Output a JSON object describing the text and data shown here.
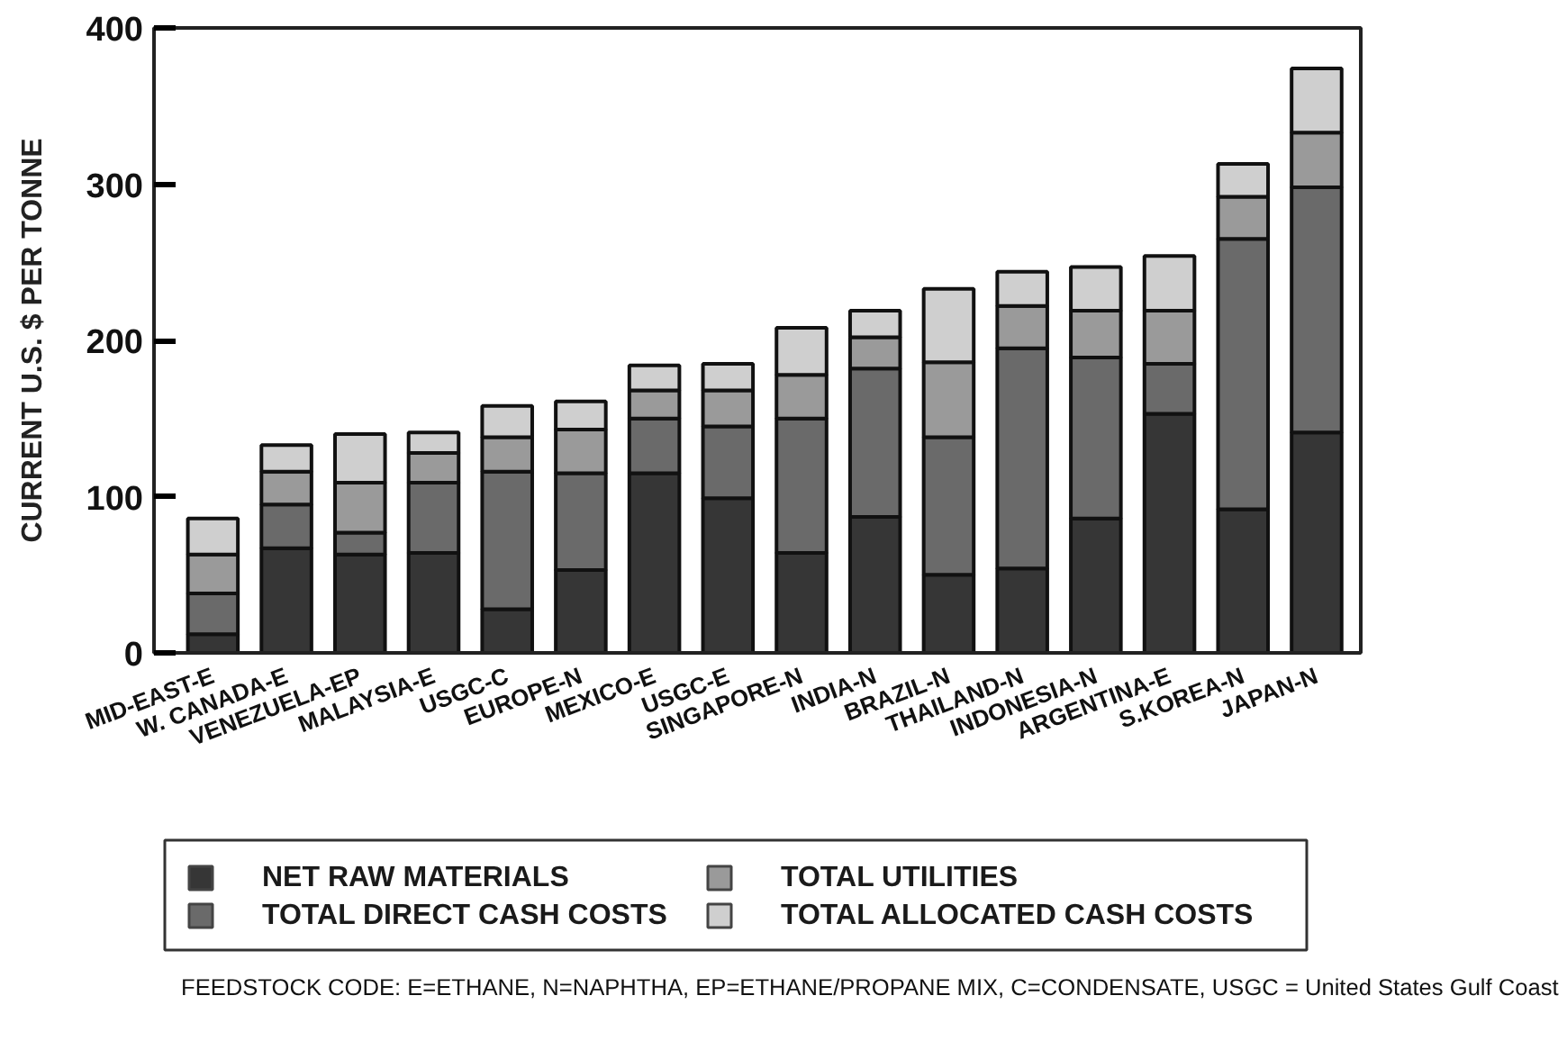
{
  "chart_data": {
    "type": "bar",
    "stacked": true,
    "ylabel": "CURRENT U.S. $ PER TONNE",
    "categories": [
      "MID-EAST-E",
      "W. CANADA-E",
      "VENEZUELA-EP",
      "MALAYSIA-E",
      "USGC-C",
      "EUROPE-N",
      "MEXICO-E",
      "USGC-E",
      "SINGAPORE-N",
      "INDIA-N",
      "BRAZIL-N",
      "THAILAND-N",
      "INDONESIA-N",
      "ARGENTINA-E",
      "S.KOREA-N",
      "JAPAN-N"
    ],
    "series": [
      {
        "name": "NET RAW MATERIALS",
        "color": "#363636",
        "values": [
          12,
          67,
          63,
          64,
          28,
          53,
          115,
          99,
          64,
          87,
          50,
          54,
          86,
          153,
          92,
          141
        ]
      },
      {
        "name": "TOTAL DIRECT CASH COSTS",
        "color": "#6a6a6a",
        "values": [
          26,
          28,
          14,
          45,
          88,
          62,
          35,
          46,
          86,
          95,
          88,
          141,
          103,
          32,
          173,
          157
        ]
      },
      {
        "name": "TOTAL UTILITIES",
        "color": "#9a9a9a",
        "values": [
          25,
          21,
          32,
          19,
          22,
          28,
          18,
          23,
          28,
          20,
          48,
          27,
          30,
          34,
          27,
          35
        ]
      },
      {
        "name": "TOTAL ALLOCATED CASH COSTS",
        "color": "#cfcfcf",
        "values": [
          23,
          17,
          31,
          13,
          20,
          18,
          16,
          17,
          30,
          17,
          47,
          22,
          28,
          35,
          21,
          41
        ]
      }
    ],
    "ylim": [
      0,
      400
    ],
    "yticks": [
      0,
      100,
      200,
      300,
      400
    ],
    "grid": false,
    "legend": "bottom",
    "annotations": [
      "FEEDSTOCK CODE: E=ETHANE, N=NAPHTHA, EP=ETHANE/PROPANE MIX, C=CONDENSATE, USGC = United States Gulf Coast"
    ]
  }
}
